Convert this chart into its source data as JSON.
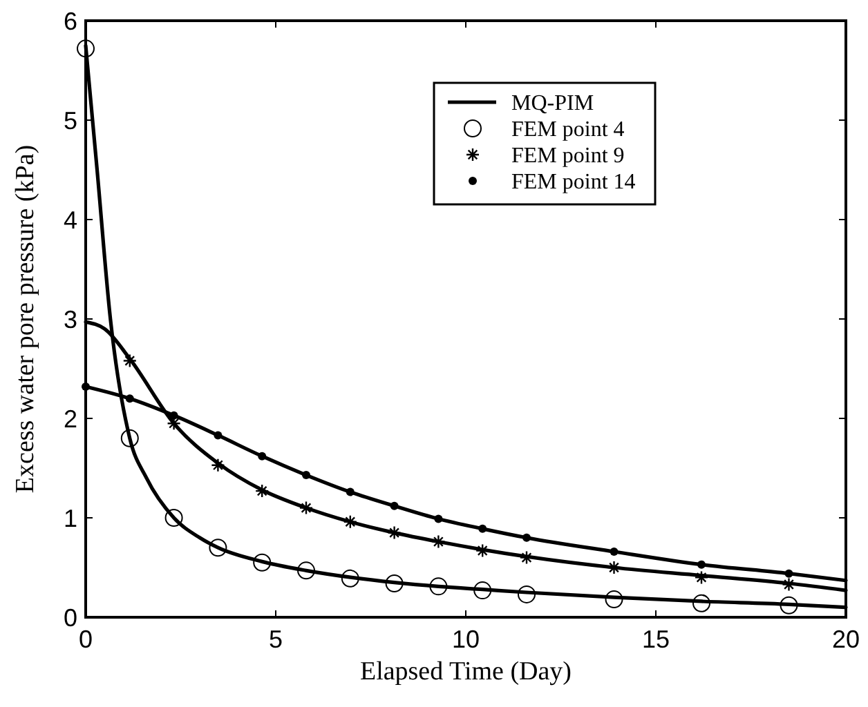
{
  "chart_data": {
    "type": "line",
    "xlabel": "Elapsed Time (Day)",
    "ylabel": "Excess water pore pressure (kPa)",
    "xlim": [
      0,
      20
    ],
    "ylim": [
      0,
      6
    ],
    "xticks": [
      0,
      5,
      10,
      15,
      20
    ],
    "yticks": [
      0,
      1,
      2,
      3,
      4,
      5,
      6
    ],
    "grid": false,
    "legend": "top right",
    "line_style": "solid",
    "series": [
      {
        "name": "MQ-PIM",
        "color": "#000000",
        "marker": "none",
        "x": [
          0,
          0.3,
          0.65,
          1.16,
          1.6,
          2.32,
          3,
          3.48,
          4.64,
          5.8,
          7,
          8.12,
          9.28,
          10.44,
          11.6,
          13.9,
          16.2,
          18.5,
          20
        ],
        "values": [
          5.75,
          4.5,
          3,
          1.8,
          1.4,
          1.0,
          0.8,
          0.7,
          0.56,
          0.47,
          0.4,
          0.35,
          0.31,
          0.28,
          0.25,
          0.2,
          0.16,
          0.13,
          0.1
        ]
      },
      {
        "color": "#000000",
        "marker": "none",
        "x": [
          0,
          0.5,
          1.16,
          2.32,
          3.48,
          4.64,
          5.8,
          6.96,
          8.12,
          9.28,
          10.44,
          11.6,
          13.9,
          16.2,
          18.5,
          20
        ],
        "values": [
          2.97,
          2.9,
          2.6,
          1.95,
          1.55,
          1.28,
          1.1,
          0.96,
          0.85,
          0.76,
          0.68,
          0.61,
          0.5,
          0.42,
          0.34,
          0.27
        ]
      },
      {
        "color": "#000000",
        "marker": "none",
        "x": [
          0,
          1.16,
          2.32,
          3.48,
          4.64,
          5.8,
          6.96,
          8.12,
          9.28,
          10.44,
          11.6,
          13.9,
          16.2,
          18.5,
          20
        ],
        "values": [
          2.32,
          2.2,
          2.03,
          1.83,
          1.62,
          1.43,
          1.26,
          1.12,
          0.99,
          0.89,
          0.8,
          0.66,
          0.53,
          0.44,
          0.37
        ]
      },
      {
        "name": "FEM point 4",
        "type": "scatter",
        "color": "#000000",
        "marker": "circle",
        "x": [
          0,
          1.16,
          2.32,
          3.48,
          4.64,
          5.8,
          6.96,
          8.12,
          9.28,
          10.44,
          11.6,
          13.9,
          16.2,
          18.5
        ],
        "values": [
          5.72,
          1.8,
          1.0,
          0.7,
          0.55,
          0.47,
          0.39,
          0.34,
          0.31,
          0.27,
          0.23,
          0.18,
          0.14,
          0.12
        ]
      },
      {
        "name": "FEM point 9",
        "type": "scatter",
        "color": "#000000",
        "marker": "cross",
        "x": [
          1.16,
          2.32,
          3.48,
          4.64,
          5.8,
          6.96,
          8.12,
          9.28,
          10.44,
          11.6,
          13.9,
          16.2,
          18.5
        ],
        "values": [
          2.58,
          1.95,
          1.53,
          1.27,
          1.1,
          0.96,
          0.85,
          0.76,
          0.67,
          0.6,
          0.5,
          0.4,
          0.33
        ]
      },
      {
        "name": "FEM point 14",
        "type": "scatter",
        "color": "#000000",
        "marker": "circle",
        "x": [
          0,
          1.16,
          2.32,
          3.48,
          4.64,
          5.8,
          6.96,
          8.12,
          9.28,
          10.44,
          11.6,
          13.9,
          16.2,
          18.5
        ],
        "values": [
          2.32,
          2.2,
          2.03,
          1.83,
          1.62,
          1.43,
          1.26,
          1.12,
          0.99,
          0.89,
          0.8,
          0.66,
          0.53,
          0.44
        ]
      }
    ]
  }
}
